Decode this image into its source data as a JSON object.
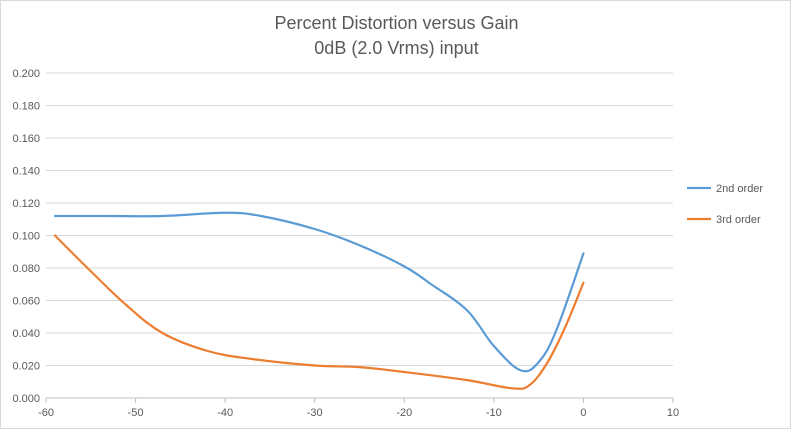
{
  "chart_data": {
    "type": "line",
    "title": "Percent Distortion versus Gain",
    "subtitle": "0dB (2.0 Vrms) input",
    "xlabel": "",
    "ylabel": "",
    "xlim": [
      -60,
      10
    ],
    "ylim": [
      0,
      0.2
    ],
    "x_ticks": [
      "-60",
      "-50",
      "-40",
      "-30",
      "-20",
      "-10",
      "0",
      "10"
    ],
    "y_ticks": [
      "0.000",
      "0.020",
      "0.040",
      "0.060",
      "0.080",
      "0.100",
      "0.120",
      "0.140",
      "0.160",
      "0.180",
      "0.200"
    ],
    "grid": "horizontal",
    "legend_position": "right",
    "series": [
      {
        "name": "2nd order",
        "color": "#5b9bd5",
        "points": [
          {
            "x": -59,
            "y": 0.112
          },
          {
            "x": -53,
            "y": 0.112
          },
          {
            "x": -47,
            "y": 0.112
          },
          {
            "x": -40,
            "y": 0.114
          },
          {
            "x": -36,
            "y": 0.112
          },
          {
            "x": -30,
            "y": 0.104
          },
          {
            "x": -25,
            "y": 0.094
          },
          {
            "x": -20,
            "y": 0.081
          },
          {
            "x": -17,
            "y": 0.07
          },
          {
            "x": -13,
            "y": 0.054
          },
          {
            "x": -10,
            "y": 0.032
          },
          {
            "x": -7,
            "y": 0.017
          },
          {
            "x": -5,
            "y": 0.022
          },
          {
            "x": -3,
            "y": 0.042
          },
          {
            "x": 0,
            "y": 0.089
          }
        ]
      },
      {
        "name": "3rd order",
        "color": "#ed7d31",
        "points": [
          {
            "x": -59,
            "y": 0.1
          },
          {
            "x": -55,
            "y": 0.078
          },
          {
            "x": -51,
            "y": 0.057
          },
          {
            "x": -47,
            "y": 0.04
          },
          {
            "x": -42,
            "y": 0.029
          },
          {
            "x": -37,
            "y": 0.024
          },
          {
            "x": -30,
            "y": 0.02
          },
          {
            "x": -25,
            "y": 0.019
          },
          {
            "x": -20,
            "y": 0.016
          },
          {
            "x": -13,
            "y": 0.011
          },
          {
            "x": -8,
            "y": 0.006
          },
          {
            "x": -6,
            "y": 0.008
          },
          {
            "x": -4,
            "y": 0.022
          },
          {
            "x": -2,
            "y": 0.044
          },
          {
            "x": 0,
            "y": 0.071
          }
        ]
      }
    ]
  }
}
